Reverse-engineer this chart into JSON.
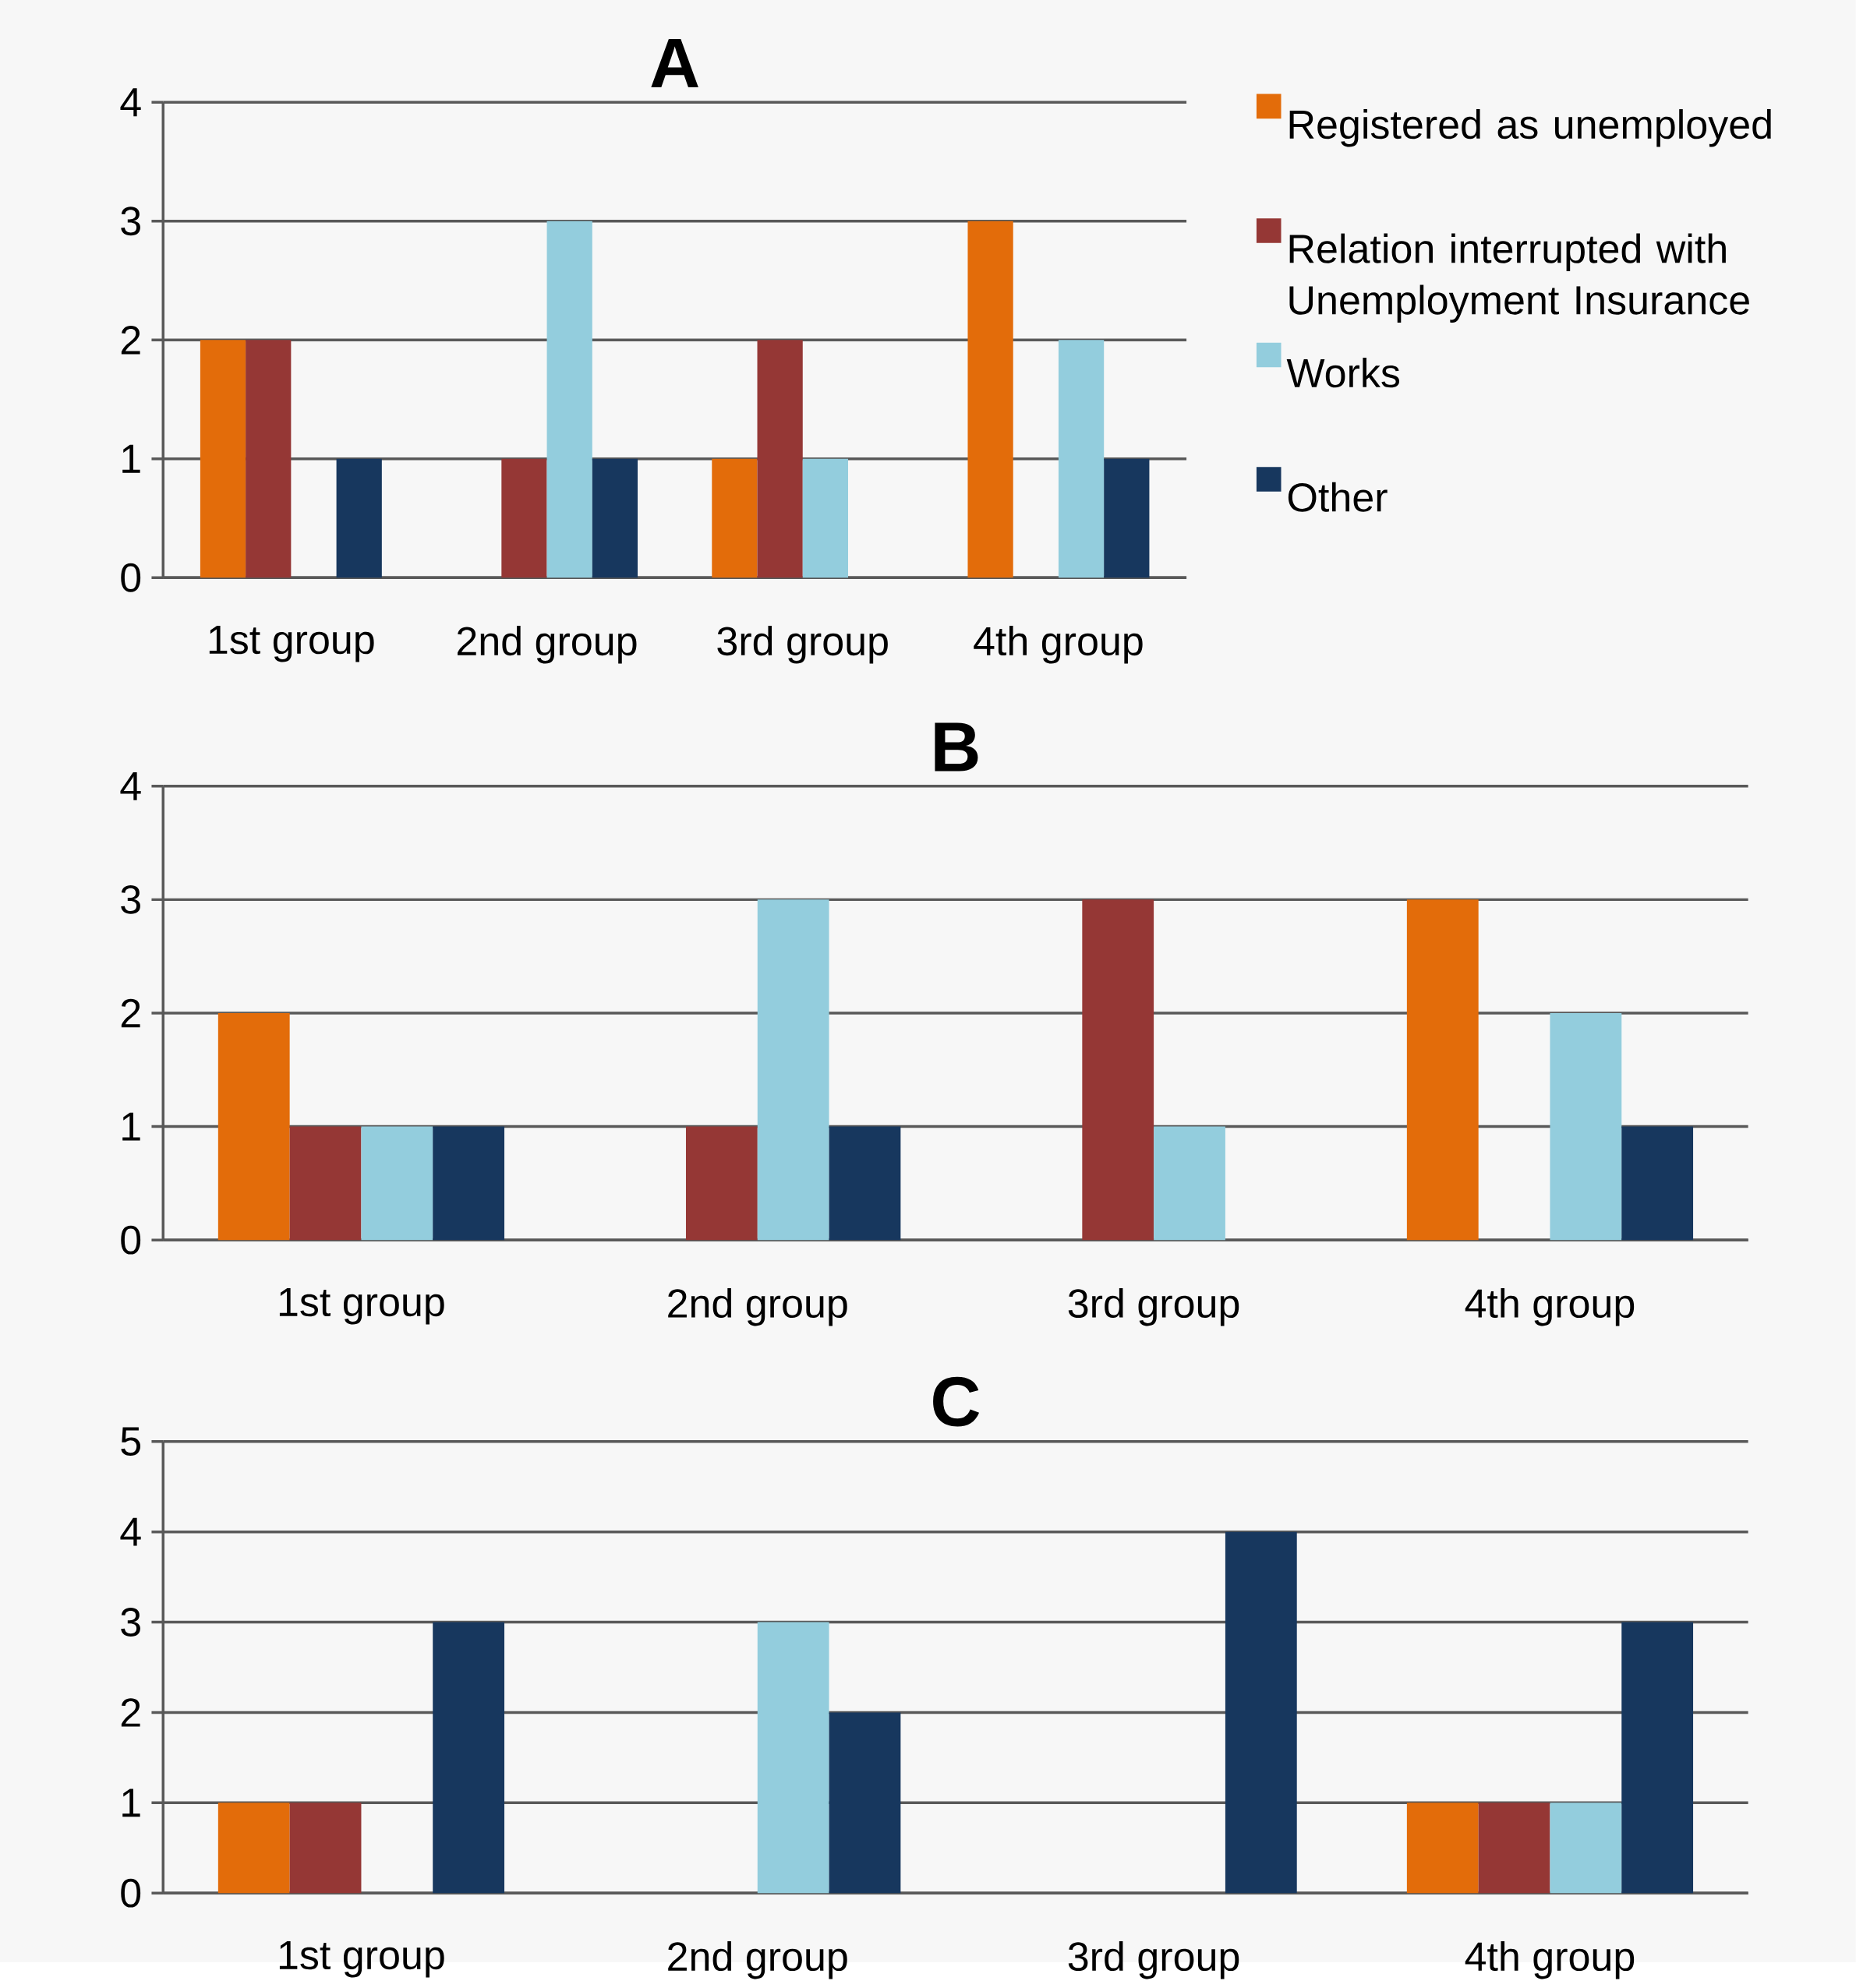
{
  "chart_data": [
    {
      "type": "bar",
      "title": "A",
      "categories": [
        "1st  group",
        "2nd group",
        "3rd group",
        "4th group"
      ],
      "series": [
        {
          "name": "Registered as unemployed",
          "color": "#e36c0a",
          "values": [
            2,
            0,
            1,
            3
          ]
        },
        {
          "name": "Relation interrupted with Unemployment Insurance",
          "color": "#953735",
          "values": [
            2,
            1,
            2,
            0
          ]
        },
        {
          "name": "Works",
          "color": "#93cddd",
          "values": [
            0,
            3,
            1,
            2
          ]
        },
        {
          "name": "Other",
          "color": "#17375e",
          "values": [
            1,
            1,
            0,
            1
          ]
        }
      ],
      "ylim": [
        0,
        4
      ],
      "yticks": [
        0,
        1,
        2,
        3,
        4
      ],
      "grid": "y",
      "legend": "right"
    },
    {
      "type": "bar",
      "title": "B",
      "categories": [
        "1st  group",
        "2nd group",
        "3rd group",
        "4th group"
      ],
      "series": [
        {
          "color": "#e36c0a",
          "values": [
            2,
            0,
            0,
            3
          ]
        },
        {
          "color": "#953735",
          "values": [
            1,
            1,
            3,
            0
          ]
        },
        {
          "color": "#93cddd",
          "values": [
            1,
            3,
            1,
            2
          ]
        },
        {
          "color": "#17375e",
          "values": [
            1,
            1,
            0,
            1
          ]
        }
      ],
      "ylim": [
        0,
        4
      ],
      "yticks": [
        0,
        1,
        2,
        3,
        4
      ],
      "grid": "y"
    },
    {
      "type": "bar",
      "title": "C",
      "categories": [
        "1st  group",
        "2nd group",
        "3rd group",
        "4th group"
      ],
      "series": [
        {
          "color": "#e36c0a",
          "values": [
            1,
            0,
            0,
            1
          ]
        },
        {
          "color": "#953735",
          "values": [
            1,
            0,
            0,
            1
          ]
        },
        {
          "color": "#93cddd",
          "values": [
            0,
            3,
            0,
            1
          ]
        },
        {
          "color": "#17375e",
          "values": [
            3,
            2,
            4,
            3
          ]
        }
      ],
      "ylim": [
        0,
        5
      ],
      "yticks": [
        0,
        1,
        2,
        3,
        4,
        5
      ],
      "grid": "y"
    }
  ]
}
